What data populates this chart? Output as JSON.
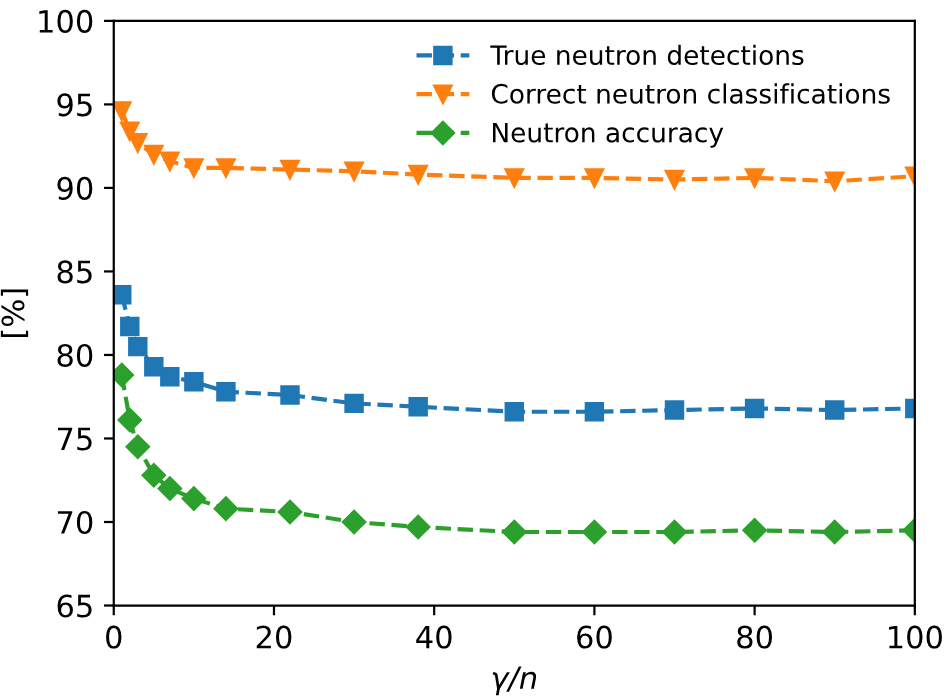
{
  "chart_data": {
    "type": "line",
    "xlabel": "γ/n",
    "ylabel": "[%]",
    "x": [
      1,
      2,
      3,
      5,
      7,
      10,
      14,
      22,
      30,
      38,
      50,
      60,
      70,
      80,
      90,
      100
    ],
    "series": [
      {
        "name": "True neutron detections",
        "color": "#1f77b4",
        "marker": "square",
        "values": [
          83.6,
          81.7,
          80.5,
          79.3,
          78.7,
          78.4,
          77.8,
          77.6,
          77.1,
          76.9,
          76.6,
          76.6,
          76.7,
          76.8,
          76.7,
          76.8
        ]
      },
      {
        "name": "Correct neutron classifications",
        "color": "#ff7f0e",
        "marker": "triangle",
        "values": [
          94.6,
          93.4,
          92.7,
          92.0,
          91.6,
          91.2,
          91.2,
          91.1,
          91.0,
          90.8,
          90.6,
          90.6,
          90.5,
          90.6,
          90.4,
          90.7
        ]
      },
      {
        "name": "Neutron accuracy",
        "color": "#2ca02c",
        "marker": "diamond",
        "values": [
          78.8,
          76.1,
          74.5,
          72.8,
          72.0,
          71.4,
          70.8,
          70.6,
          70.0,
          69.7,
          69.4,
          69.4,
          69.4,
          69.5,
          69.4,
          69.5
        ]
      }
    ],
    "xlim": [
      0,
      100
    ],
    "xticks": [
      0,
      20,
      40,
      60,
      80,
      100
    ],
    "ylim": [
      65,
      100
    ],
    "yticks": [
      65,
      70,
      75,
      80,
      85,
      90,
      95,
      100
    ],
    "line_style": "dashed",
    "legend": "top right",
    "grid": false
  }
}
